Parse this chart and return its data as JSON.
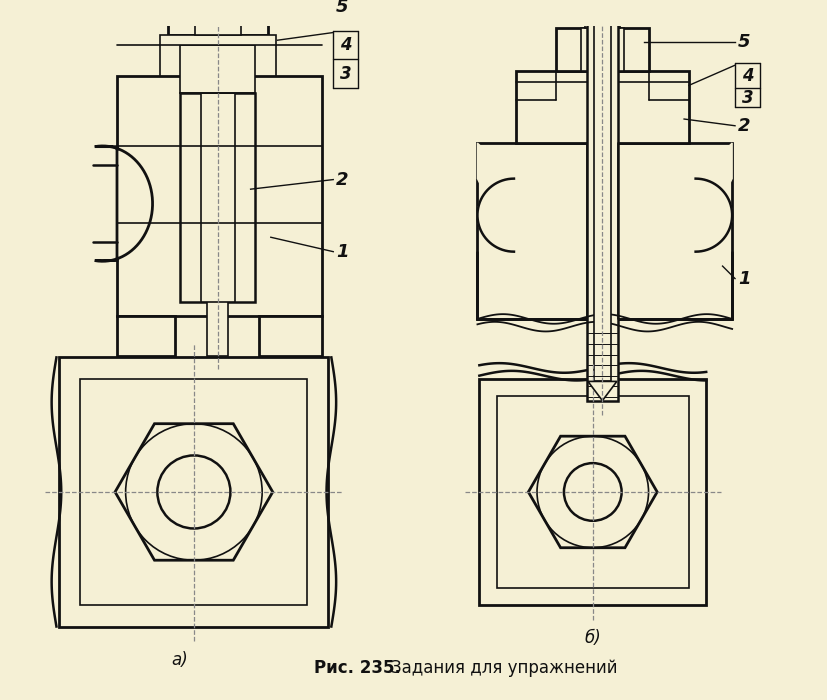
{
  "title": "Рис. 235.",
  "title_suffix": "Задания для упражнений",
  "bg_color": "#f5f0d5",
  "line_color": "#111111",
  "label_a": "а)",
  "label_b": "б)",
  "caption_fontsize": 12,
  "label_fontsize": 12
}
